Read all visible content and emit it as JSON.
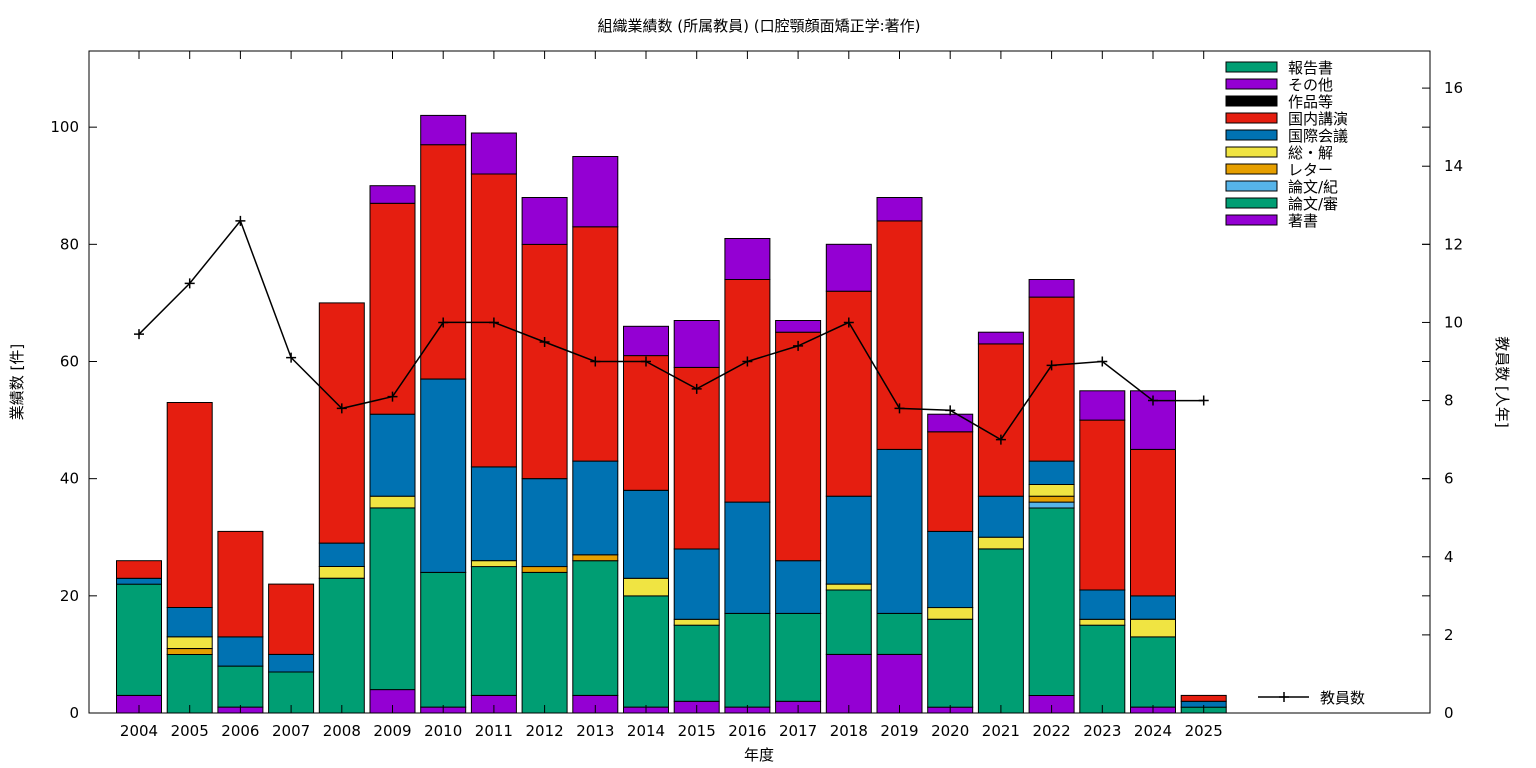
{
  "chart_data": {
    "type": "bar",
    "stacked": true,
    "title": "組織業績数 (所属教員) (口腔顎顔面矯正学:著作)",
    "xlabel": "年度",
    "ylabel": "業績数 [件]",
    "y2label": "教員数 [人年]",
    "ylim": [
      0,
      113
    ],
    "y2lim": [
      0,
      16.95
    ],
    "yticks": [
      0,
      20,
      40,
      60,
      80,
      100
    ],
    "y2ticks": [
      0,
      2,
      4,
      6,
      8,
      10,
      12,
      14,
      16
    ],
    "grid": false,
    "legend_position": "top-right",
    "categories": [
      "2004",
      "2005",
      "2006",
      "2007",
      "2008",
      "2009",
      "2010",
      "2011",
      "2012",
      "2013",
      "2014",
      "2015",
      "2016",
      "2017",
      "2018",
      "2019",
      "2020",
      "2021",
      "2022",
      "2023",
      "2024",
      "2025"
    ],
    "series": [
      {
        "name": "著書",
        "color": "#9400d3",
        "values": [
          3,
          0,
          1,
          0,
          0,
          4,
          1,
          3,
          0,
          3,
          1,
          2,
          1,
          2,
          10,
          10,
          1,
          0,
          3,
          0,
          1,
          0
        ]
      },
      {
        "name": "論文/審",
        "color": "#009e73",
        "values": [
          19,
          10,
          7,
          7,
          23,
          31,
          23,
          22,
          24,
          23,
          19,
          13,
          16,
          15,
          11,
          7,
          15,
          28,
          32,
          15,
          12,
          1
        ]
      },
      {
        "name": "論文/紀",
        "color": "#56b4e9",
        "values": [
          0,
          0,
          0,
          0,
          0,
          0,
          0,
          0,
          0,
          0,
          0,
          0,
          0,
          0,
          0,
          0,
          0,
          0,
          1,
          0,
          0,
          0
        ]
      },
      {
        "name": "レター",
        "color": "#e69f00",
        "values": [
          0,
          1,
          0,
          0,
          0,
          0,
          0,
          0,
          1,
          1,
          0,
          0,
          0,
          0,
          0,
          0,
          0,
          0,
          1,
          0,
          0,
          0
        ]
      },
      {
        "name": "総・解",
        "color": "#f0e442",
        "values": [
          0,
          2,
          0,
          0,
          2,
          2,
          0,
          1,
          0,
          0,
          3,
          1,
          0,
          0,
          1,
          0,
          2,
          2,
          2,
          1,
          3,
          0
        ]
      },
      {
        "name": "国際会議",
        "color": "#0072b2",
        "values": [
          1,
          5,
          5,
          3,
          4,
          14,
          33,
          16,
          15,
          16,
          15,
          12,
          19,
          9,
          15,
          28,
          13,
          7,
          4,
          5,
          4,
          1
        ]
      },
      {
        "name": "国内講演",
        "color": "#e51e10",
        "values": [
          3,
          35,
          18,
          12,
          41,
          36,
          40,
          50,
          40,
          40,
          23,
          31,
          38,
          39,
          35,
          39,
          17,
          26,
          28,
          29,
          25,
          1
        ]
      },
      {
        "name": "作品等",
        "color": "#000000",
        "values": [
          0,
          0,
          0,
          0,
          0,
          0,
          0,
          0,
          0,
          0,
          0,
          0,
          0,
          0,
          0,
          0,
          0,
          0,
          0,
          0,
          0,
          0
        ]
      },
      {
        "name": "その他",
        "color": "#9400d3",
        "values": [
          0,
          0,
          0,
          0,
          0,
          3,
          5,
          7,
          8,
          12,
          5,
          8,
          7,
          2,
          8,
          4,
          3,
          2,
          3,
          5,
          10,
          0
        ]
      },
      {
        "name": "報告書",
        "color": "#009e73",
        "values": [
          0,
          0,
          0,
          0,
          0,
          0,
          0,
          0,
          0,
          0,
          0,
          0,
          0,
          0,
          0,
          0,
          0,
          0,
          0,
          0,
          0,
          0
        ]
      }
    ],
    "line_series": {
      "name": "教員数",
      "axis": "y2",
      "color": "#000000",
      "x": [
        "2004",
        "2005",
        "2006",
        "2007",
        "2008",
        "2009",
        "2010",
        "2011",
        "2012",
        "2013",
        "2014",
        "2015",
        "2016",
        "2017",
        "2018",
        "2019",
        "2020",
        "2021",
        "2022",
        "2023",
        "2024",
        "2025"
      ],
      "values": [
        9.7,
        11.0,
        12.6,
        9.1,
        7.8,
        8.1,
        10.0,
        10.0,
        9.5,
        9.0,
        9.0,
        8.3,
        9.0,
        9.4,
        10.0,
        7.8,
        7.75,
        7.0,
        8.9,
        9.0,
        8.0,
        8.0
      ]
    }
  }
}
